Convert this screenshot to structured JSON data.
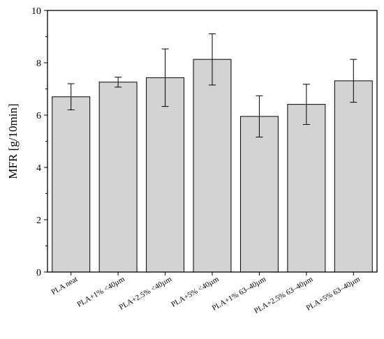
{
  "chart_data": {
    "type": "bar",
    "title": "",
    "xlabel": "",
    "ylabel": "MFR [g/10min]",
    "ylim": [
      0,
      10
    ],
    "yticks": [
      0,
      2,
      4,
      6,
      8,
      10
    ],
    "grid": false,
    "legend": "none",
    "categories": [
      "PLA neat",
      "PLA+1% <40µm",
      "PLA+2.5% <40µm",
      "PLA+5% <40µm",
      "PLA+1% 63–40µm",
      "PLA+2.5% 63–40µm",
      "PLA+5% 63–40µm"
    ],
    "values": [
      6.7,
      7.26,
      7.43,
      8.13,
      5.95,
      6.41,
      7.31
    ],
    "errors": [
      0.5,
      0.19,
      1.1,
      0.98,
      0.79,
      0.77,
      0.82
    ],
    "colors": {
      "bar_fill": "#d3d3d3",
      "bar_stroke": "#000000",
      "axis": "#000000"
    }
  }
}
